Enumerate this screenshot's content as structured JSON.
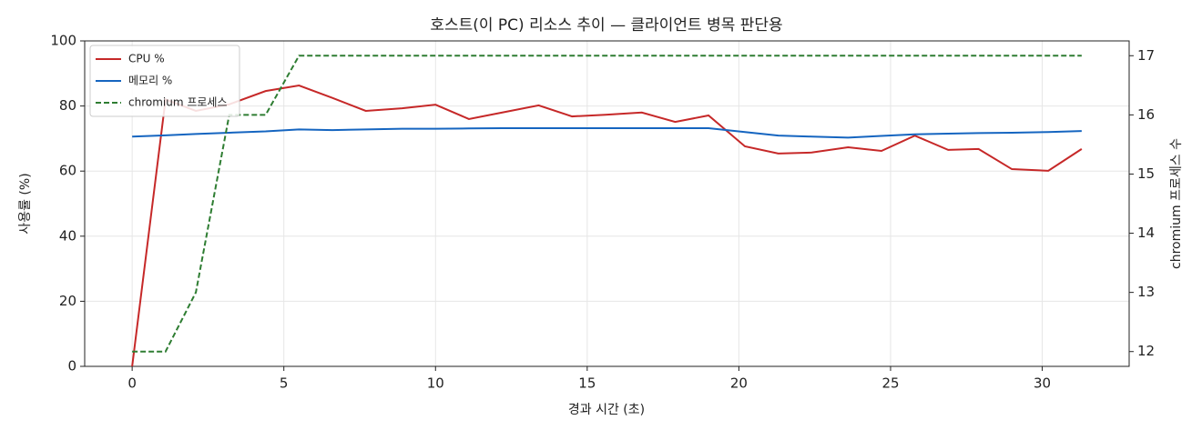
{
  "chart_data": {
    "type": "line",
    "title": "호스트(이 PC) 리소스 추이 — 클라이언트 병목 판단용",
    "x_label": "경과 시간 (초)",
    "y_label": "사용률 (%)",
    "y2_label": "chromium 프로세스 수",
    "x": [
      0,
      1.1,
      2.1,
      3.2,
      4.4,
      5.5,
      6.6,
      7.7,
      8.9,
      10.0,
      11.1,
      12.2,
      13.4,
      14.5,
      15.6,
      16.8,
      17.9,
      19.0,
      20.2,
      21.3,
      22.4,
      23.6,
      24.7,
      25.8,
      26.9,
      27.9,
      29.0,
      30.2,
      31.3
    ],
    "series": [
      {
        "name": "CPU %",
        "color": "#c62828",
        "values": [
          0,
          82,
          78.5,
          80.5,
          84.6,
          86.3,
          82.5,
          78.5,
          79.3,
          80.4,
          76,
          78,
          80.2,
          76.8,
          77.3,
          78,
          75.1,
          77.1,
          67.6,
          65.4,
          65.7,
          67.3,
          66.2,
          70.9,
          66.5,
          66.8,
          60.6,
          60.1,
          66.8
        ]
      },
      {
        "name": "메모리 %",
        "color": "#1565c0",
        "values": [
          70.6,
          71.0,
          71.4,
          71.8,
          72.2,
          72.8,
          72.6,
          72.8,
          73.0,
          73.0,
          73.1,
          73.2,
          73.2,
          73.2,
          73.2,
          73.2,
          73.2,
          73.2,
          72.0,
          70.9,
          70.6,
          70.3,
          70.8,
          71.3,
          71.5,
          71.7,
          71.8,
          72.0,
          72.3
        ]
      },
      {
        "name": "chromium 프로세스",
        "color": "#2e7d32",
        "dashed": true,
        "axis": "y2",
        "values": [
          12,
          12,
          13,
          16,
          16,
          17,
          17,
          17,
          17,
          17,
          17,
          17,
          17,
          17,
          17,
          17,
          17,
          17,
          17,
          17,
          17,
          17,
          17,
          17,
          17,
          17,
          17,
          17,
          17
        ]
      }
    ],
    "xlim": [
      -1.565,
      32.865
    ],
    "xticks": [
      0,
      5,
      10,
      15,
      20,
      25,
      30
    ],
    "ylim": [
      0,
      100
    ],
    "yticks": [
      0,
      20,
      40,
      60,
      80,
      100
    ],
    "y2lim": [
      11.75,
      17.25
    ],
    "y2ticks": [
      12,
      13,
      14,
      15,
      16,
      17
    ],
    "grid": true,
    "legend": "upper left"
  }
}
